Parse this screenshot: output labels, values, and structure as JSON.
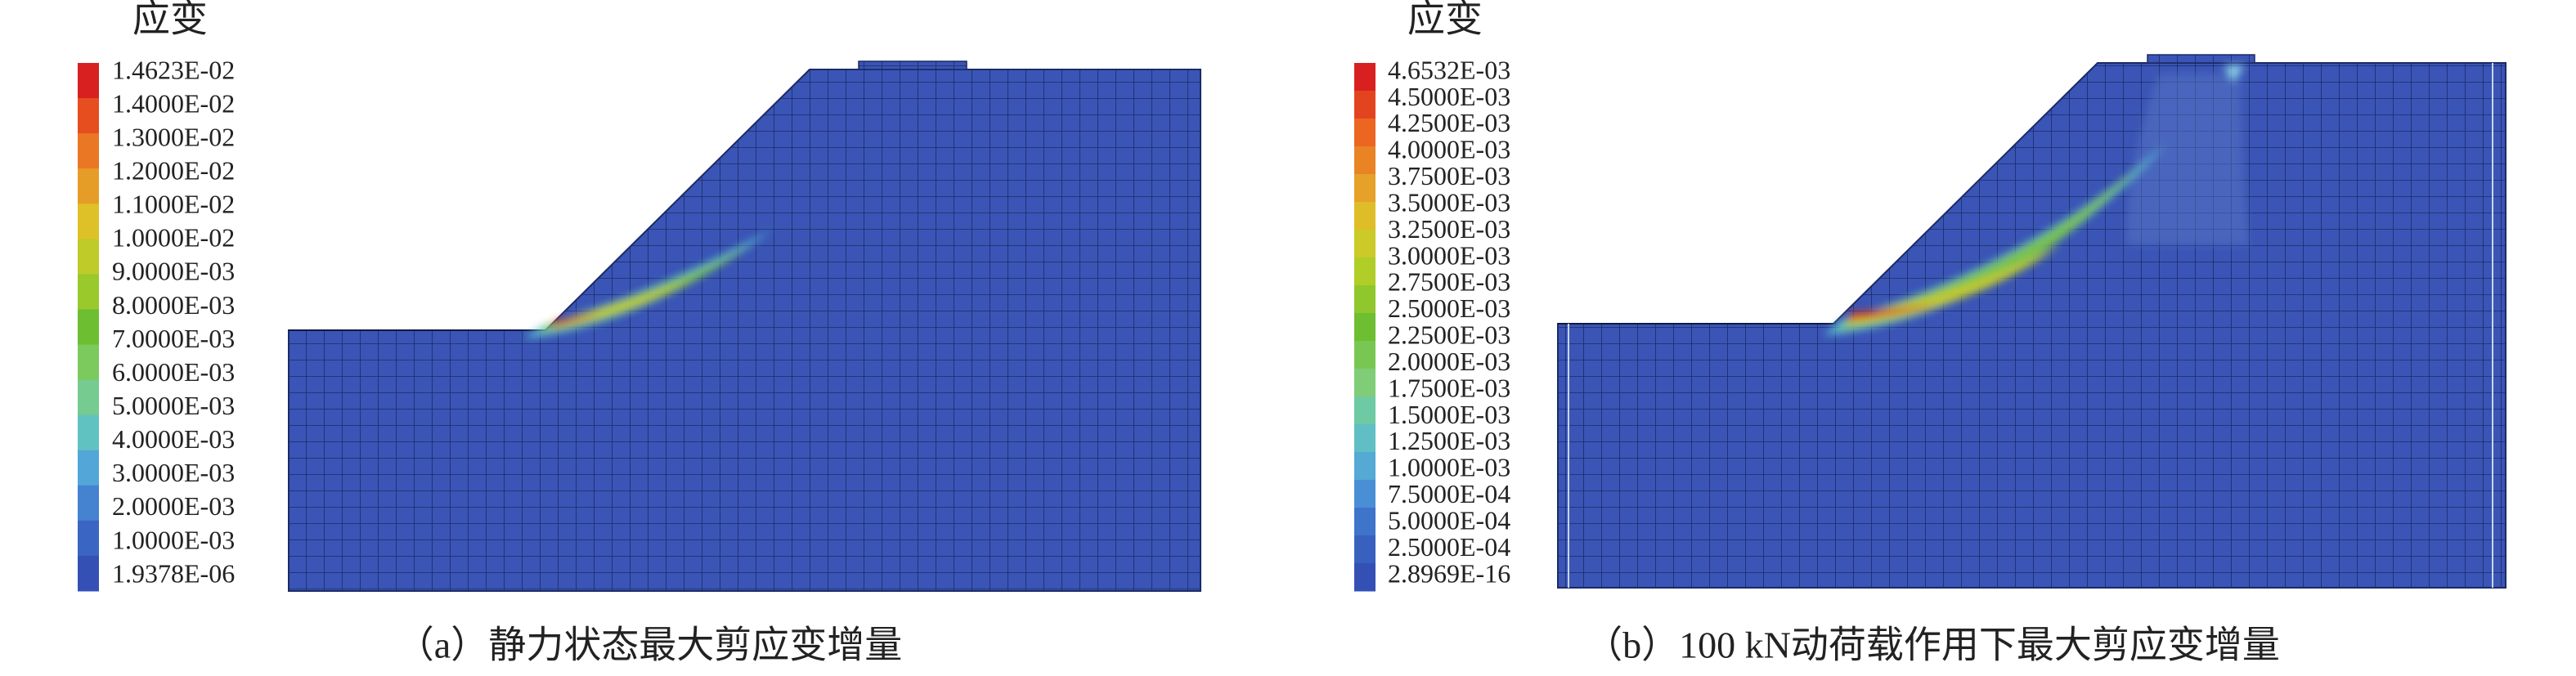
{
  "panels": [
    {
      "legend_title": "应变",
      "legend_labels": [
        "1.4623E-02",
        "1.4000E-02",
        "1.3000E-02",
        "1.2000E-02",
        "1.1000E-02",
        "1.0000E-02",
        "9.0000E-03",
        "8.0000E-03",
        "7.0000E-03",
        "6.0000E-03",
        "5.0000E-03",
        "4.0000E-03",
        "3.0000E-03",
        "2.0000E-03",
        "1.0000E-03",
        "1.9378E-06"
      ],
      "caption": "（a）静力状态最大剪应变增量"
    },
    {
      "legend_title": "应变",
      "legend_labels": [
        "4.6532E-03",
        "4.5000E-03",
        "4.2500E-03",
        "4.0000E-03",
        "3.7500E-03",
        "3.5000E-03",
        "3.2500E-03",
        "3.0000E-03",
        "2.7500E-03",
        "2.5000E-03",
        "2.2500E-03",
        "2.0000E-03",
        "1.7500E-03",
        "1.5000E-03",
        "1.2500E-03",
        "1.0000E-03",
        "7.5000E-04",
        "5.0000E-04",
        "2.5000E-04",
        "2.8969E-16"
      ],
      "caption": "（b）100 kN动荷载作用下最大剪应变增量"
    }
  ]
}
